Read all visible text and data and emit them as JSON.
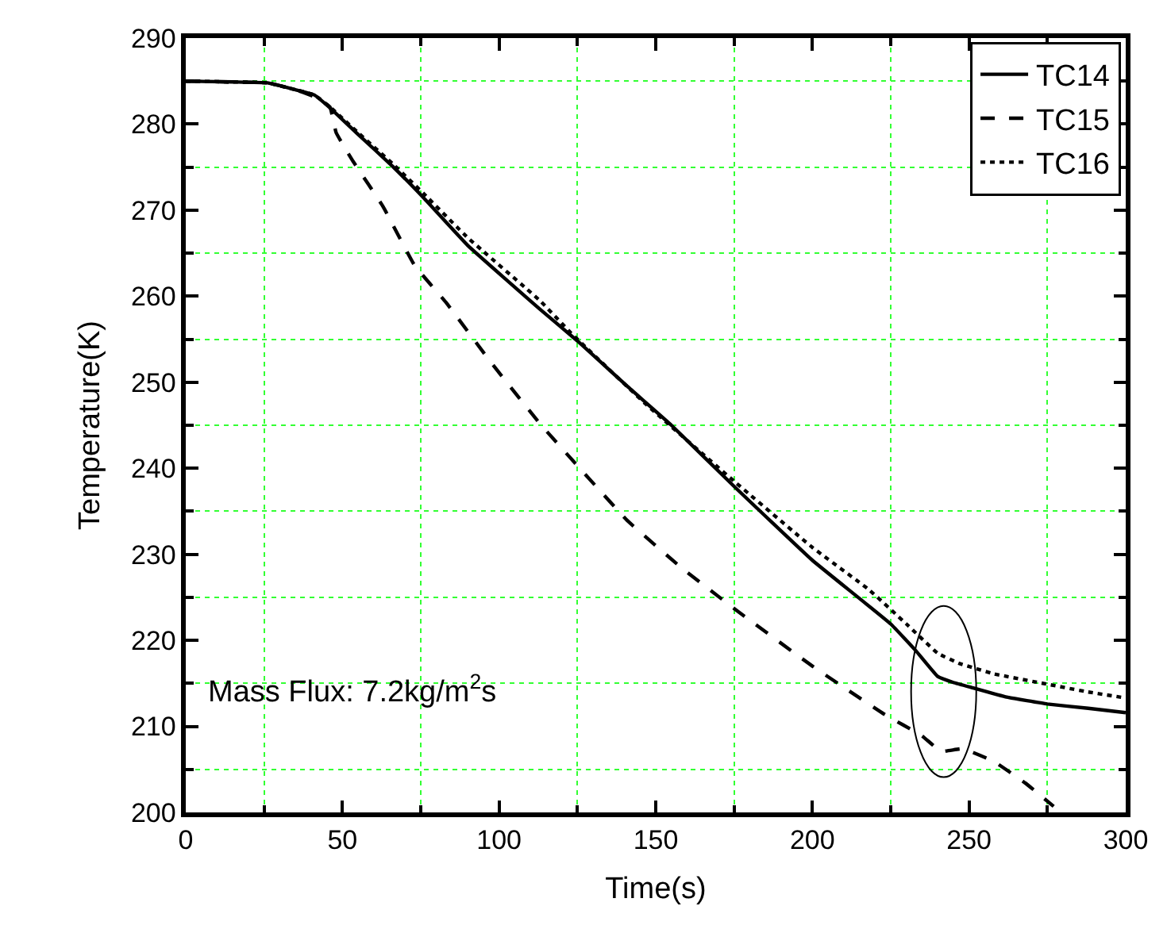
{
  "chart_data": {
    "type": "line",
    "xlabel": "Time(s)",
    "ylabel": "Temperature(K)",
    "xlim": [
      0,
      300
    ],
    "xticks": [
      0,
      {
        "value": 25,
        "label": null
      },
      50,
      {
        "value": 75,
        "label": null
      },
      100,
      {
        "value": 125,
        "label": null
      },
      150,
      {
        "value": 175,
        "label": null
      },
      200,
      {
        "value": 225,
        "label": null
      },
      250,
      {
        "value": 275,
        "label": null
      },
      300
    ],
    "ylim": [
      200,
      290
    ],
    "yticks": [
      200,
      {
        "value": 205,
        "label": null
      },
      210,
      {
        "value": 215,
        "label": null
      },
      220,
      {
        "value": 225,
        "label": null
      },
      230,
      {
        "value": 235,
        "label": null
      },
      240,
      {
        "value": 245,
        "label": null
      },
      250,
      {
        "value": 255,
        "label": null
      },
      260,
      {
        "value": 265,
        "label": null
      },
      270,
      {
        "value": 275,
        "label": null
      },
      280,
      {
        "value": 285,
        "label": null
      },
      290
    ],
    "grid": true,
    "legend": "top right",
    "marker": "none",
    "annotations": [
      "Mass Flux: 7.2kg/m$^{2}$s"
    ],
    "series": [
      {
        "name": "TC14",
        "color": "#000000",
        "line_style": "solid",
        "x": [
          0,
          15,
          26,
          35,
          41,
          46,
          55,
          66,
          76,
          90,
          113,
          125,
          141,
          155,
          175,
          200,
          225,
          233,
          240,
          245,
          251,
          262,
          275,
          288,
          300
        ],
        "values": [
          285,
          284.9,
          284.8,
          284,
          283.4,
          281.9,
          278.8,
          275.1,
          271.4,
          265.9,
          258.5,
          254.8,
          249.5,
          245,
          237.9,
          229.3,
          221.9,
          218.8,
          215.8,
          215.1,
          214.5,
          213.4,
          212.6,
          212.1,
          211.6
        ]
      },
      {
        "name": "TC15",
        "color": "#000000",
        "line_style": "dashed",
        "x": [
          0,
          15,
          26,
          35,
          41,
          46,
          48,
          53,
          63,
          73,
          83,
          97,
          113,
          125,
          141,
          158,
          175,
          200,
          223,
          235,
          241,
          248,
          258,
          268,
          277
        ],
        "values": [
          285,
          284.9,
          284.8,
          284,
          283.2,
          282,
          279,
          275.9,
          270.4,
          263.6,
          259.3,
          252.5,
          245.2,
          240.3,
          233.9,
          228.5,
          223.7,
          217,
          211.4,
          208.9,
          207.1,
          207.4,
          205.9,
          203.4,
          200.7
        ]
      },
      {
        "name": "TC16",
        "color": "#000000",
        "line_style": "dotted",
        "x": [
          0,
          15,
          26,
          35,
          41,
          46,
          55,
          66,
          76,
          90,
          113,
          123,
          147,
          175,
          200,
          218,
          230,
          240,
          247,
          258,
          275,
          288,
          300
        ],
        "values": [
          285,
          284.9,
          284.8,
          284,
          283.4,
          282,
          279,
          275.4,
          271.9,
          266.8,
          259.5,
          255.7,
          247.4,
          238.5,
          230.8,
          225.9,
          221.9,
          218.5,
          217.3,
          216.1,
          214.9,
          214,
          213.3
        ]
      }
    ]
  }
}
